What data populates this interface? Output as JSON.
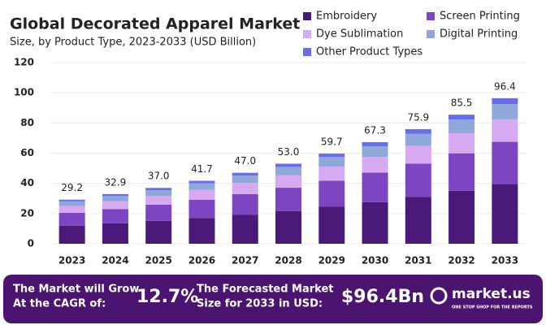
{
  "chart_data": {
    "type": "stacked_bar",
    "title": "Global Decorated Apparel Market",
    "subtitle": "Size, by Product Type, 2023-2033 (USD Billion)",
    "categories": [
      "2023",
      "2024",
      "2025",
      "2026",
      "2027",
      "2028",
      "2029",
      "2030",
      "2031",
      "2032",
      "2033"
    ],
    "series": [
      {
        "name": "Embroidery",
        "color": "#4a1a7a",
        "values": [
          12.0,
          13.5,
          15.2,
          17.1,
          19.3,
          21.7,
          24.5,
          27.6,
          31.1,
          35.1,
          39.5
        ]
      },
      {
        "name": "Screen Printing",
        "color": "#7e45c2",
        "values": [
          8.5,
          9.5,
          10.7,
          12.1,
          13.6,
          15.4,
          17.3,
          19.5,
          22.0,
          24.8,
          28.0
        ]
      },
      {
        "name": "Dye Sublimation",
        "color": "#d6a9f0",
        "values": [
          4.5,
          5.1,
          5.7,
          6.5,
          7.3,
          8.2,
          9.3,
          10.4,
          11.8,
          13.3,
          14.9
        ]
      },
      {
        "name": "Digital Printing",
        "color": "#8fa8d9",
        "values": [
          3.1,
          3.5,
          3.9,
          4.4,
          4.9,
          5.6,
          6.3,
          7.1,
          8.0,
          9.0,
          10.1
        ]
      },
      {
        "name": "Other Product Types",
        "color": "#6a6cf0",
        "values": [
          1.1,
          1.3,
          1.5,
          1.6,
          1.9,
          2.1,
          2.3,
          2.7,
          3.0,
          3.3,
          3.9
        ]
      }
    ],
    "totals": [
      29.2,
      32.9,
      37,
      41.7,
      47,
      53,
      59.7,
      67.3,
      75.9,
      85.5,
      96.4
    ],
    "totals_labels": [
      "29.2",
      "32.9",
      "37.0",
      "41.7",
      "47.0",
      "53.0",
      "59.7",
      "67.3",
      "75.9",
      "85.5",
      "96.4"
    ],
    "ylim": [
      0,
      120
    ],
    "yticks": [
      0,
      20,
      40,
      60,
      80,
      100,
      120
    ],
    "grid": true
  },
  "footer": {
    "cagr_text": [
      "The Market will Grow",
      "At the CAGR of:"
    ],
    "cagr_value": "12.7%",
    "forecast_text": [
      "The Forecasted Market",
      "Size for 2033 in USD:"
    ],
    "forecast_value": "$96.4Bn",
    "brand": "market.us",
    "tagline": "ONE STOP SHOP FOR THE REPORTS"
  }
}
